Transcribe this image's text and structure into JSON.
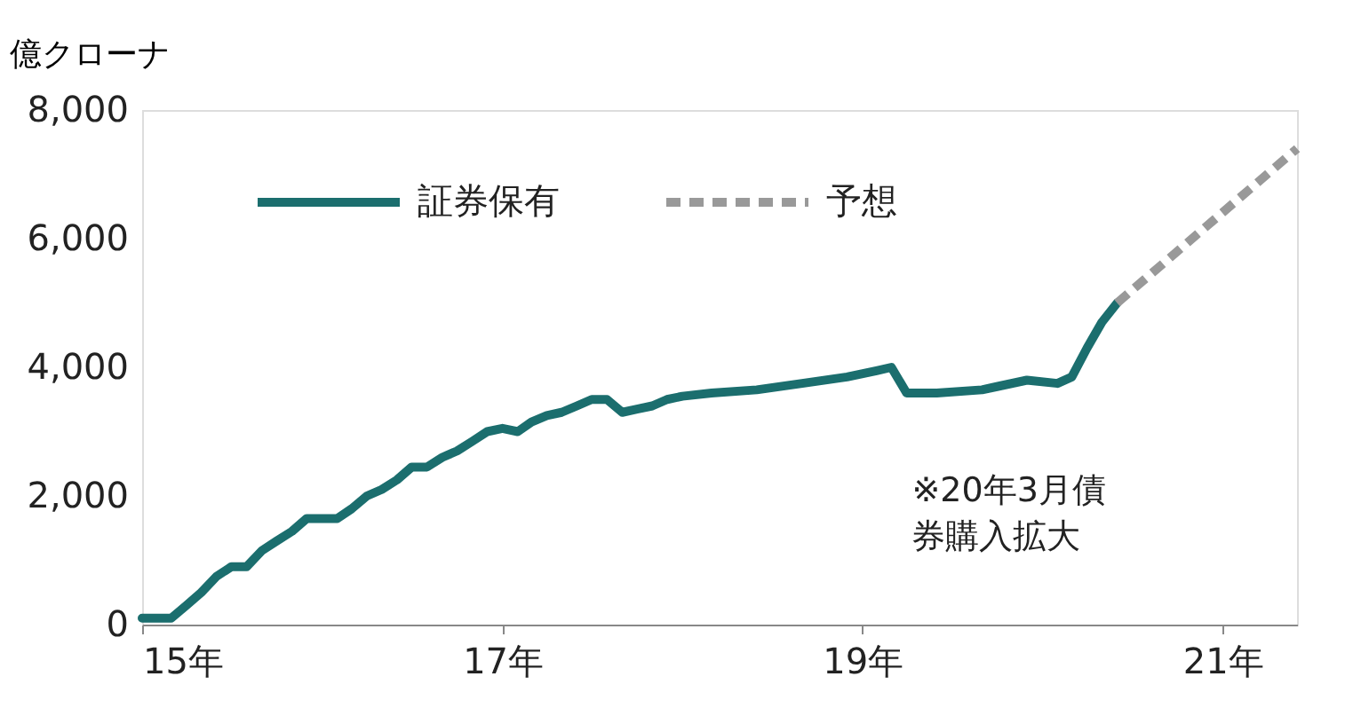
{
  "chart_data": {
    "type": "line",
    "ylabel": "億クローナ",
    "xlim": [
      "2015-01",
      "2021-06"
    ],
    "xticks": [
      {
        "value": "2015-01",
        "label": "15年"
      },
      {
        "value": "2017-01",
        "label": "17年"
      },
      {
        "value": "2019-01",
        "label": "19年"
      },
      {
        "value": "2021-01",
        "label": "21年"
      }
    ],
    "ylim": [
      0,
      8000
    ],
    "yticks": [
      {
        "value": 0,
        "label": "0"
      },
      {
        "value": 2000,
        "label": "2,000"
      },
      {
        "value": 4000,
        "label": "4,000"
      },
      {
        "value": 6000,
        "label": "6,000"
      },
      {
        "value": 8000,
        "label": "8,000"
      }
    ],
    "grid": false,
    "legend": "top left",
    "marker": "none",
    "series": [
      {
        "name": "証券保有",
        "color": "#1b6e6e",
        "line_style": "solid",
        "x": [
          "2015-01",
          "2015-03",
          "2015-04",
          "2015-05",
          "2015-06",
          "2015-07",
          "2015-08",
          "2015-09",
          "2015-10",
          "2015-11",
          "2015-12",
          "2016-01",
          "2016-02",
          "2016-03",
          "2016-04",
          "2016-05",
          "2016-06",
          "2016-07",
          "2016-08",
          "2016-09",
          "2016-10",
          "2016-11",
          "2016-12",
          "2017-01",
          "2017-02",
          "2017-03",
          "2017-04",
          "2017-05",
          "2017-06",
          "2017-07",
          "2017-08",
          "2017-09",
          "2017-10",
          "2017-11",
          "2017-12",
          "2018-01",
          "2018-03",
          "2018-06",
          "2018-09",
          "2018-12",
          "2019-02",
          "2019-03",
          "2019-04",
          "2019-06",
          "2019-09",
          "2019-10",
          "2019-12",
          "2020-02",
          "2020-03",
          "2020-04",
          "2020-05",
          "2020-06"
        ],
        "values": [
          100,
          100,
          300,
          500,
          750,
          900,
          900,
          1150,
          1300,
          1450,
          1650,
          1650,
          1650,
          1800,
          2000,
          2100,
          2250,
          2450,
          2450,
          2600,
          2700,
          2850,
          3000,
          3050,
          3000,
          3150,
          3250,
          3300,
          3400,
          3500,
          3500,
          3300,
          3350,
          3400,
          3500,
          3550,
          3600,
          3650,
          3750,
          3850,
          3950,
          4000,
          3600,
          3600,
          3650,
          3700,
          3800,
          3750,
          3850,
          4300,
          4700,
          5000
        ]
      },
      {
        "name": "予想",
        "color": "#999999",
        "line_style": "dashed",
        "x": [
          "2020-06",
          "2021-06"
        ],
        "values": [
          5000,
          7400
        ]
      }
    ],
    "annotations": [
      {
        "text": "※20年3月債券購入拡大",
        "x": "2020-03",
        "y": 3850
      }
    ]
  }
}
